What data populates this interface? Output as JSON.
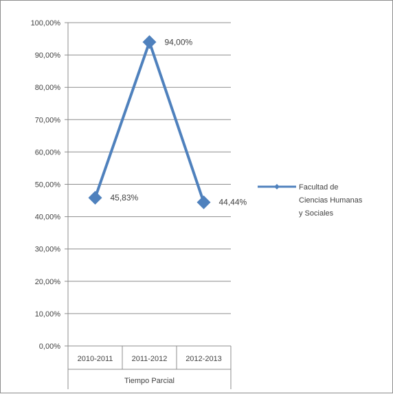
{
  "chart_data": {
    "type": "line",
    "categories": [
      "2010-2011",
      "2011-2012",
      "2012-2013"
    ],
    "group_label": "Tiempo Parcial",
    "series": [
      {
        "name": "Facultad de Ciencias Humanas y Sociales",
        "name_lines": [
          "Facultad de",
          "Ciencias Humanas",
          "y Sociales"
        ],
        "values": [
          45.83,
          94.0,
          44.44
        ],
        "data_labels": [
          "45,83%",
          "94,00%",
          "44,44%"
        ],
        "color": "#4f81bd",
        "marker": "diamond"
      }
    ],
    "ylim": [
      0,
      100
    ],
    "y_ticks": [
      "0,00%",
      "10,00%",
      "20,00%",
      "30,00%",
      "40,00%",
      "50,00%",
      "60,00%",
      "70,00%",
      "80,00%",
      "90,00%",
      "100,00%"
    ],
    "grid": true,
    "legend_position": "right"
  }
}
